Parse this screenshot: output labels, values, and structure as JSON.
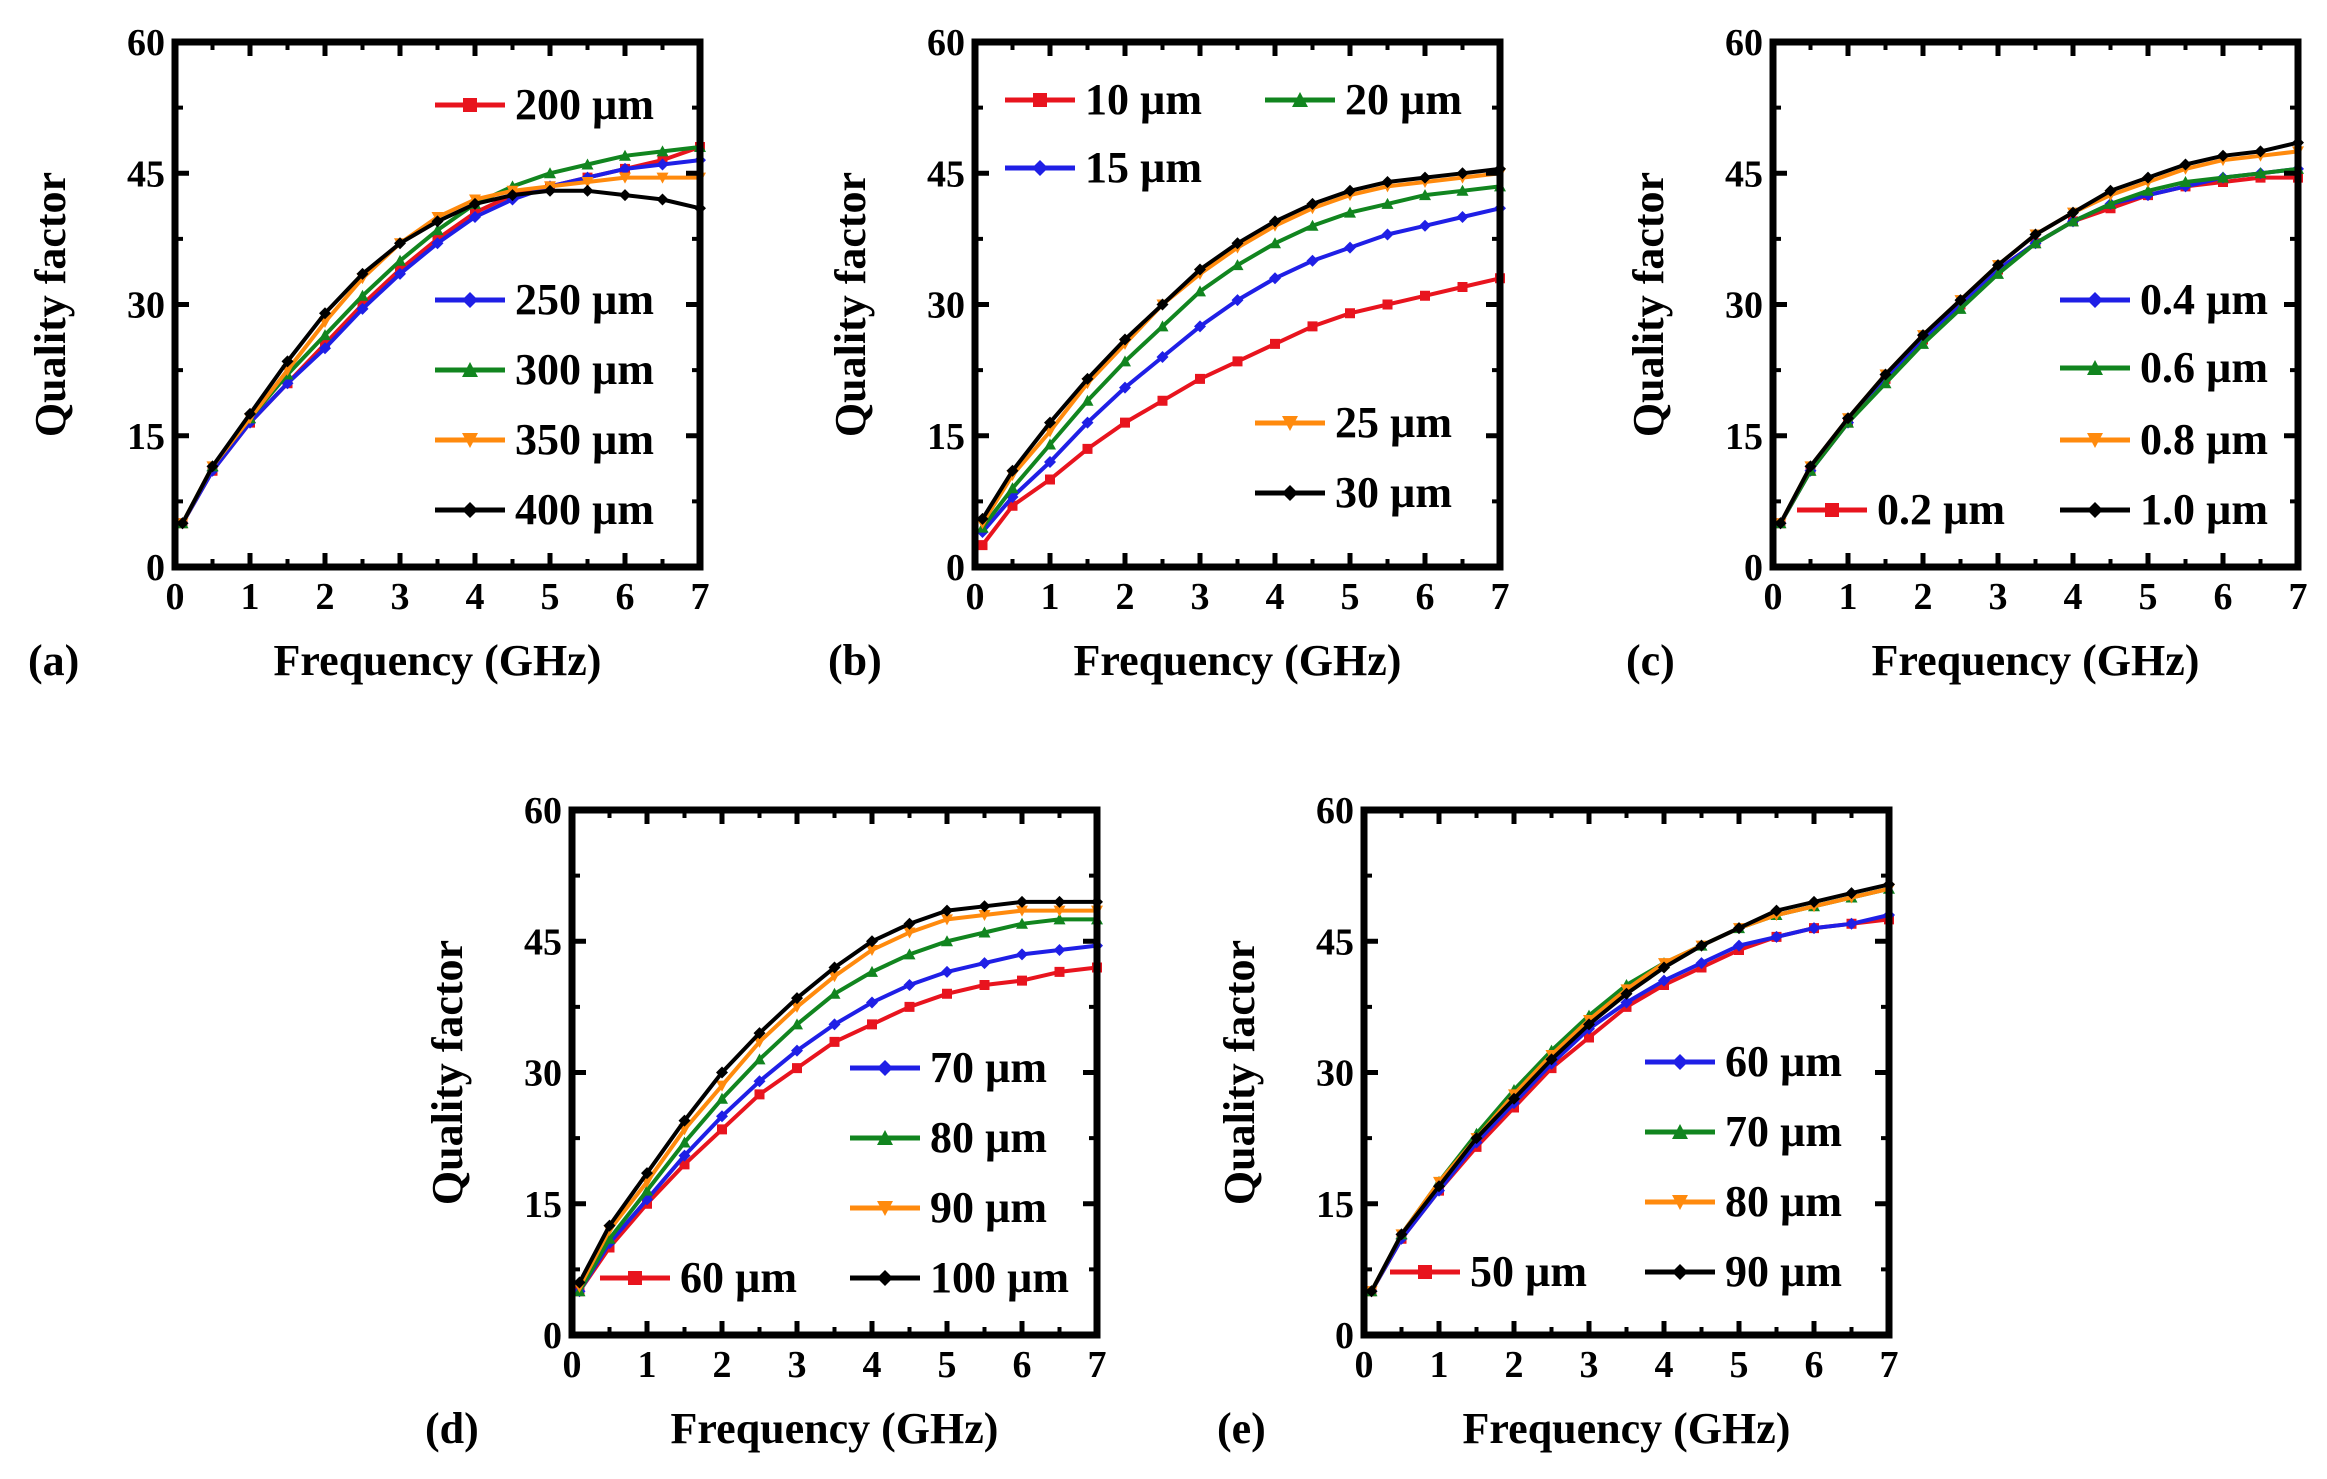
{
  "chart_data": [
    {
      "type": "line",
      "panel_label": "(a)",
      "xlabel": "Frequency (GHz)",
      "ylabel": "Quality factor",
      "xlim": [
        0,
        7
      ],
      "ylim": [
        0,
        60
      ],
      "xticks": [
        "0",
        "1",
        "2",
        "3",
        "4",
        "5",
        "6",
        "7"
      ],
      "yticks": [
        "0",
        "15",
        "30",
        "45",
        "60"
      ],
      "series": [
        {
          "name": "200 µm",
          "color": "#e8141e",
          "marker": "square",
          "x": [
            0.1,
            0.5,
            1,
            1.5,
            2,
            2.5,
            3,
            3.5,
            4,
            4.5,
            5,
            5.5,
            6,
            6.5,
            7
          ],
          "y": [
            5,
            11,
            16.5,
            21,
            25.5,
            30,
            34,
            37.5,
            40.5,
            42.5,
            43.5,
            44.5,
            45.5,
            46.5,
            48
          ]
        },
        {
          "name": "250 µm",
          "color": "#1f1fe6",
          "marker": "diamond",
          "x": [
            0.1,
            0.5,
            1,
            1.5,
            2,
            2.5,
            3,
            3.5,
            4,
            4.5,
            5,
            5.5,
            6,
            6.5,
            7
          ],
          "y": [
            5,
            11,
            16.5,
            21,
            25,
            29.5,
            33.5,
            37,
            40,
            42,
            43.5,
            44.5,
            45.5,
            46,
            46.5
          ]
        },
        {
          "name": "300 µm",
          "color": "#11851f",
          "marker": "triangle-up",
          "x": [
            0.1,
            0.5,
            1,
            1.5,
            2,
            2.5,
            3,
            3.5,
            4,
            4.5,
            5,
            5.5,
            6,
            6.5,
            7
          ],
          "y": [
            5,
            11.5,
            17,
            22,
            26.5,
            31,
            35,
            38.5,
            41.5,
            43.5,
            45,
            46,
            47,
            47.5,
            48
          ]
        },
        {
          "name": "350 µm",
          "color": "#ff8a0d",
          "marker": "triangle-down",
          "x": [
            0.1,
            0.5,
            1,
            1.5,
            2,
            2.5,
            3,
            3.5,
            4,
            4.5,
            5,
            5.5,
            6,
            6.5,
            7
          ],
          "y": [
            5,
            11.5,
            17,
            22.5,
            28,
            33,
            37,
            40,
            42,
            43,
            43.5,
            44,
            44.5,
            44.5,
            44.5
          ]
        },
        {
          "name": "400 µm",
          "color": "#000000",
          "marker": "diamond",
          "x": [
            0.1,
            0.5,
            1,
            1.5,
            2,
            2.5,
            3,
            3.5,
            4,
            4.5,
            5,
            5.5,
            6,
            6.5,
            7
          ],
          "y": [
            5,
            11.5,
            17.5,
            23.5,
            29,
            33.5,
            37,
            39.5,
            41.5,
            42.5,
            43,
            43,
            42.5,
            42,
            41
          ]
        }
      ]
    },
    {
      "type": "line",
      "panel_label": "(b)",
      "xlabel": "Frequency (GHz)",
      "ylabel": "Quality factor",
      "xlim": [
        0,
        7
      ],
      "ylim": [
        0,
        60
      ],
      "xticks": [
        "0",
        "1",
        "2",
        "3",
        "4",
        "5",
        "6",
        "7"
      ],
      "yticks": [
        "0",
        "15",
        "30",
        "45",
        "60"
      ],
      "series": [
        {
          "name": "10 µm",
          "color": "#e8141e",
          "marker": "square",
          "x": [
            0.1,
            0.5,
            1,
            1.5,
            2,
            2.5,
            3,
            3.5,
            4,
            4.5,
            5,
            5.5,
            6,
            6.5,
            7
          ],
          "y": [
            2.5,
            7,
            10,
            13.5,
            16.5,
            19,
            21.5,
            23.5,
            25.5,
            27.5,
            29,
            30,
            31,
            32,
            33
          ]
        },
        {
          "name": "15 µm",
          "color": "#1f1fe6",
          "marker": "diamond",
          "x": [
            0.1,
            0.5,
            1,
            1.5,
            2,
            2.5,
            3,
            3.5,
            4,
            4.5,
            5,
            5.5,
            6,
            6.5,
            7
          ],
          "y": [
            4,
            8,
            12,
            16.5,
            20.5,
            24,
            27.5,
            30.5,
            33,
            35,
            36.5,
            38,
            39,
            40,
            41
          ]
        },
        {
          "name": "20 µm",
          "color": "#11851f",
          "marker": "triangle-up",
          "x": [
            0.1,
            0.5,
            1,
            1.5,
            2,
            2.5,
            3,
            3.5,
            4,
            4.5,
            5,
            5.5,
            6,
            6.5,
            7
          ],
          "y": [
            4.5,
            9,
            14,
            19,
            23.5,
            27.5,
            31.5,
            34.5,
            37,
            39,
            40.5,
            41.5,
            42.5,
            43,
            43.5
          ]
        },
        {
          "name": "25 µm",
          "color": "#ff8a0d",
          "marker": "triangle-down",
          "x": [
            0.1,
            0.5,
            1,
            1.5,
            2,
            2.5,
            3,
            3.5,
            4,
            4.5,
            5,
            5.5,
            6,
            6.5,
            7
          ],
          "y": [
            5,
            10.5,
            15.5,
            21,
            25.5,
            30,
            33.5,
            36.5,
            39,
            41,
            42.5,
            43.5,
            44,
            44.5,
            45
          ]
        },
        {
          "name": "30 µm",
          "color": "#000000",
          "marker": "diamond",
          "x": [
            0.1,
            0.5,
            1,
            1.5,
            2,
            2.5,
            3,
            3.5,
            4,
            4.5,
            5,
            5.5,
            6,
            6.5,
            7
          ],
          "y": [
            5.5,
            11,
            16.5,
            21.5,
            26,
            30,
            34,
            37,
            39.5,
            41.5,
            43,
            44,
            44.5,
            45,
            45.5
          ]
        }
      ]
    },
    {
      "type": "line",
      "panel_label": "(c)",
      "xlabel": "Frequency (GHz)",
      "ylabel": "Quality factor",
      "xlim": [
        0,
        7
      ],
      "ylim": [
        0,
        60
      ],
      "xticks": [
        "0",
        "1",
        "2",
        "3",
        "4",
        "5",
        "6",
        "7"
      ],
      "yticks": [
        "0",
        "15",
        "30",
        "45",
        "60"
      ],
      "series": [
        {
          "name": "0.2 µm",
          "color": "#e8141e",
          "marker": "square",
          "x": [
            0.1,
            0.5,
            1,
            1.5,
            2,
            2.5,
            3,
            3.5,
            4,
            4.5,
            5,
            5.5,
            6,
            6.5,
            7
          ],
          "y": [
            5,
            11,
            16.5,
            21.5,
            26,
            30,
            34,
            37,
            39.5,
            41,
            42.5,
            43.5,
            44,
            44.5,
            44.5
          ]
        },
        {
          "name": "0.4 µm",
          "color": "#1f1fe6",
          "marker": "diamond",
          "x": [
            0.1,
            0.5,
            1,
            1.5,
            2,
            2.5,
            3,
            3.5,
            4,
            4.5,
            5,
            5.5,
            6,
            6.5,
            7
          ],
          "y": [
            5,
            11,
            16.5,
            21.5,
            26,
            30,
            34,
            37,
            39.5,
            41.5,
            42.5,
            43.5,
            44.5,
            45,
            45.5
          ]
        },
        {
          "name": "0.6 µm",
          "color": "#11851f",
          "marker": "triangle-up",
          "x": [
            0.1,
            0.5,
            1,
            1.5,
            2,
            2.5,
            3,
            3.5,
            4,
            4.5,
            5,
            5.5,
            6,
            6.5,
            7
          ],
          "y": [
            5,
            11,
            16.5,
            21,
            25.5,
            29.5,
            33.5,
            37,
            39.5,
            41.5,
            43,
            44,
            44.5,
            45,
            45.5
          ]
        },
        {
          "name": "0.8 µm",
          "color": "#ff8a0d",
          "marker": "triangle-down",
          "x": [
            0.1,
            0.5,
            1,
            1.5,
            2,
            2.5,
            3,
            3.5,
            4,
            4.5,
            5,
            5.5,
            6,
            6.5,
            7
          ],
          "y": [
            5,
            11.5,
            17,
            22,
            26.5,
            30.5,
            34.5,
            38,
            40.5,
            42.5,
            44,
            45.5,
            46.5,
            47,
            47.5
          ]
        },
        {
          "name": "1.0 µm",
          "color": "#000000",
          "marker": "diamond",
          "x": [
            0.1,
            0.5,
            1,
            1.5,
            2,
            2.5,
            3,
            3.5,
            4,
            4.5,
            5,
            5.5,
            6,
            6.5,
            7
          ],
          "y": [
            5,
            11.5,
            17,
            22,
            26.5,
            30.5,
            34.5,
            38,
            40.5,
            43,
            44.5,
            46,
            47,
            47.5,
            48.5
          ]
        }
      ]
    },
    {
      "type": "line",
      "panel_label": "(d)",
      "xlabel": "Frequency (GHz)",
      "ylabel": "Quality factor",
      "xlim": [
        0,
        7
      ],
      "ylim": [
        0,
        60
      ],
      "xticks": [
        "0",
        "1",
        "2",
        "3",
        "4",
        "5",
        "6",
        "7"
      ],
      "yticks": [
        "0",
        "15",
        "30",
        "45",
        "60"
      ],
      "series": [
        {
          "name": "60 µm",
          "color": "#e8141e",
          "marker": "square",
          "x": [
            0.1,
            0.5,
            1,
            1.5,
            2,
            2.5,
            3,
            3.5,
            4,
            4.5,
            5,
            5.5,
            6,
            6.5,
            7
          ],
          "y": [
            5,
            10,
            15,
            19.5,
            23.5,
            27.5,
            30.5,
            33.5,
            35.5,
            37.5,
            39,
            40,
            40.5,
            41.5,
            42
          ]
        },
        {
          "name": "70 µm",
          "color": "#1f1fe6",
          "marker": "diamond",
          "x": [
            0.1,
            0.5,
            1,
            1.5,
            2,
            2.5,
            3,
            3.5,
            4,
            4.5,
            5,
            5.5,
            6,
            6.5,
            7
          ],
          "y": [
            5,
            10.5,
            15.5,
            20.5,
            25,
            29,
            32.5,
            35.5,
            38,
            40,
            41.5,
            42.5,
            43.5,
            44,
            44.5
          ]
        },
        {
          "name": "80 µm",
          "color": "#11851f",
          "marker": "triangle-up",
          "x": [
            0.1,
            0.5,
            1,
            1.5,
            2,
            2.5,
            3,
            3.5,
            4,
            4.5,
            5,
            5.5,
            6,
            6.5,
            7
          ],
          "y": [
            5,
            11,
            16.5,
            22,
            27,
            31.5,
            35.5,
            39,
            41.5,
            43.5,
            45,
            46,
            47,
            47.5,
            47.5
          ]
        },
        {
          "name": "90 µm",
          "color": "#ff8a0d",
          "marker": "triangle-down",
          "x": [
            0.1,
            0.5,
            1,
            1.5,
            2,
            2.5,
            3,
            3.5,
            4,
            4.5,
            5,
            5.5,
            6,
            6.5,
            7
          ],
          "y": [
            5.5,
            12,
            17.5,
            23.5,
            28.5,
            33.5,
            37.5,
            41,
            44,
            46,
            47.5,
            48,
            48.5,
            48.5,
            48.5
          ]
        },
        {
          "name": "100 µm",
          "color": "#000000",
          "marker": "diamond",
          "x": [
            0.1,
            0.5,
            1,
            1.5,
            2,
            2.5,
            3,
            3.5,
            4,
            4.5,
            5,
            5.5,
            6,
            6.5,
            7
          ],
          "y": [
            6,
            12.5,
            18.5,
            24.5,
            30,
            34.5,
            38.5,
            42,
            45,
            47,
            48.5,
            49,
            49.5,
            49.5,
            49.5
          ]
        }
      ]
    },
    {
      "type": "line",
      "panel_label": "(e)",
      "xlabel": "Frequency (GHz)",
      "ylabel": "Quality factor",
      "xlim": [
        0,
        7
      ],
      "ylim": [
        0,
        60
      ],
      "xticks": [
        "0",
        "1",
        "2",
        "3",
        "4",
        "5",
        "6",
        "7"
      ],
      "yticks": [
        "0",
        "15",
        "30",
        "45",
        "60"
      ],
      "series": [
        {
          "name": "50 µm",
          "color": "#e8141e",
          "marker": "square",
          "x": [
            0.1,
            0.5,
            1,
            1.5,
            2,
            2.5,
            3,
            3.5,
            4,
            4.5,
            5,
            5.5,
            6,
            6.5,
            7
          ],
          "y": [
            5,
            11,
            16.5,
            21.5,
            26,
            30.5,
            34,
            37.5,
            40,
            42,
            44,
            45.5,
            46.5,
            47,
            47.5
          ]
        },
        {
          "name": "60 µm",
          "color": "#1f1fe6",
          "marker": "diamond",
          "x": [
            0.1,
            0.5,
            1,
            1.5,
            2,
            2.5,
            3,
            3.5,
            4,
            4.5,
            5,
            5.5,
            6,
            6.5,
            7
          ],
          "y": [
            5,
            11,
            16.5,
            22,
            26.5,
            31,
            35,
            38,
            40.5,
            42.5,
            44.5,
            45.5,
            46.5,
            47,
            48
          ]
        },
        {
          "name": "70 µm",
          "color": "#11851f",
          "marker": "triangle-up",
          "x": [
            0.1,
            0.5,
            1,
            1.5,
            2,
            2.5,
            3,
            3.5,
            4,
            4.5,
            5,
            5.5,
            6,
            6.5,
            7
          ],
          "y": [
            5,
            11.5,
            17.5,
            23,
            28,
            32.5,
            36.5,
            40,
            42.5,
            44.5,
            46.5,
            48,
            49,
            50,
            51
          ]
        },
        {
          "name": "80 µm",
          "color": "#ff8a0d",
          "marker": "triangle-down",
          "x": [
            0.1,
            0.5,
            1,
            1.5,
            2,
            2.5,
            3,
            3.5,
            4,
            4.5,
            5,
            5.5,
            6,
            6.5,
            7
          ],
          "y": [
            5,
            11.5,
            17.5,
            22.5,
            27.5,
            32,
            36,
            39.5,
            42.5,
            44.5,
            46.5,
            48,
            49,
            50,
            51
          ]
        },
        {
          "name": "90 µm",
          "color": "#000000",
          "marker": "diamond",
          "x": [
            0.1,
            0.5,
            1,
            1.5,
            2,
            2.5,
            3,
            3.5,
            4,
            4.5,
            5,
            5.5,
            6,
            6.5,
            7
          ],
          "y": [
            5,
            11.5,
            17,
            22.5,
            27,
            31.5,
            35.5,
            39,
            42,
            44.5,
            46.5,
            48.5,
            49.5,
            50.5,
            51.5
          ]
        }
      ]
    }
  ]
}
